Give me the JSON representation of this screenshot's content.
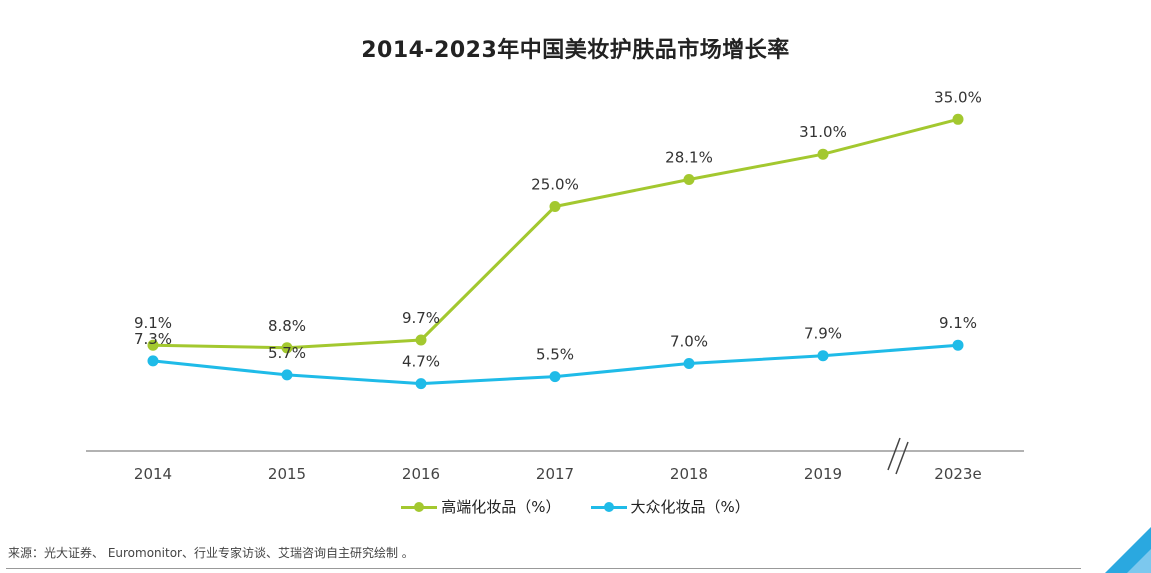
{
  "chart_data": {
    "type": "line",
    "title": "2014-2023年中国美妆护肤品市场增长率",
    "categories": [
      "2014",
      "2015",
      "2016",
      "2017",
      "2018",
      "2019",
      "2023e"
    ],
    "series": [
      {
        "name": "高端化妆品（%）",
        "color": "#a3c82f",
        "values": [
          9.1,
          8.8,
          9.7,
          25.0,
          28.1,
          31.0,
          35.0
        ],
        "labels": [
          "9.1%",
          "8.8%",
          "9.7%",
          "25.0%",
          "28.1%",
          "31.0%",
          "35.0%"
        ]
      },
      {
        "name": "大众化妆品（%）",
        "color": "#1fbbe8",
        "values": [
          7.3,
          5.7,
          4.7,
          5.5,
          7.0,
          7.9,
          9.1
        ],
        "labels": [
          "7.3%",
          "5.7%",
          "4.7%",
          "5.5%",
          "7.0%",
          "7.9%",
          "9.1%"
        ]
      }
    ],
    "ylim": [
      0,
      40
    ],
    "grid": false,
    "legend_position": "bottom",
    "axis_break": "between 2019 and 2023e"
  },
  "source_note": "来源：光大证券、 Euromonitor、行业专家访谈、艾瑞咨询自主研究绘制 。"
}
